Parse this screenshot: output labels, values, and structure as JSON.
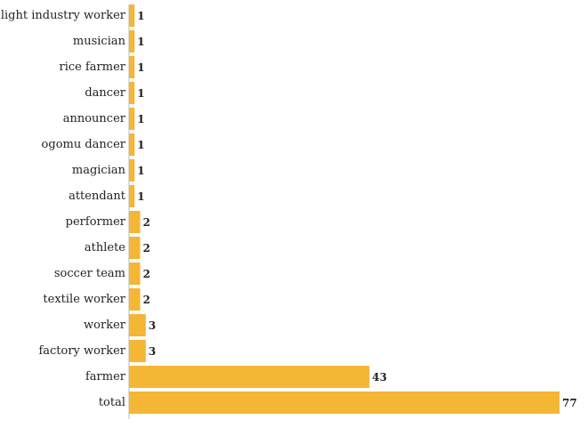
{
  "chart_data": {
    "type": "bar",
    "orientation": "horizontal",
    "categories": [
      "light industry worker",
      "musician",
      "rice farmer",
      "dancer",
      "announcer",
      "ogomu dancer",
      "magician",
      "attendant",
      "performer",
      "athlete",
      "soccer team",
      "textile worker",
      "worker",
      "factory worker",
      "farmer",
      "total"
    ],
    "values": [
      1,
      1,
      1,
      1,
      1,
      1,
      1,
      1,
      2,
      2,
      2,
      2,
      3,
      3,
      43,
      77
    ],
    "title": "",
    "xlabel": "",
    "ylabel": "",
    "xlim": [
      0,
      77
    ],
    "grid": false,
    "data_labels": true,
    "colors": {
      "bar": "#f4b635",
      "axis": "#bbbbbb",
      "text": "#222222"
    }
  }
}
